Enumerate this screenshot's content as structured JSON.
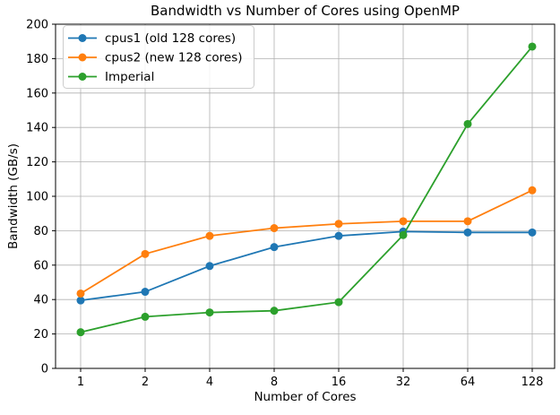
{
  "chart_data": {
    "type": "line",
    "title": "Bandwidth vs Number of Cores using OpenMP",
    "xlabel": "Number of Cores",
    "ylabel": "Bandwidth (GB/s)",
    "x_scale": "log2",
    "categories": [
      "1",
      "2",
      "4",
      "8",
      "16",
      "32",
      "64",
      "128"
    ],
    "ylim": [
      0,
      200
    ],
    "ytick_step": 20,
    "yticks": [
      "0",
      "20",
      "40",
      "60",
      "80",
      "100",
      "120",
      "140",
      "160",
      "180",
      "200"
    ],
    "grid": true,
    "legend_position": "upper left",
    "series": [
      {
        "name": "cpus1 (old 128 cores)",
        "color": "#1f77b4",
        "values": [
          39.5,
          44.5,
          59.5,
          70.5,
          77,
          79.5,
          79,
          79
        ]
      },
      {
        "name": "cpus2 (new 128 cores)",
        "color": "#ff7f0e",
        "values": [
          43.5,
          66.5,
          77,
          81.5,
          84,
          85.5,
          85.5,
          103.5
        ]
      },
      {
        "name": "Imperial",
        "color": "#2ca02c",
        "values": [
          21,
          30,
          32.5,
          33.5,
          38.5,
          77.5,
          142,
          187
        ]
      }
    ],
    "colors": {
      "background": "#ffffff",
      "grid": "#b0b0b0",
      "spine": "#000000",
      "legend_border": "#cccccc",
      "legend_fill": "#ffffff"
    }
  }
}
